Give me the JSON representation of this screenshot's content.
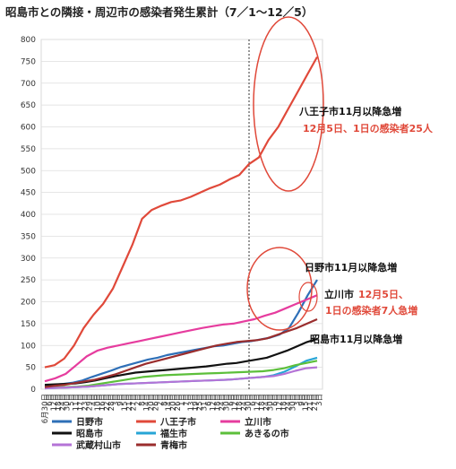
{
  "chart_data": {
    "type": "line",
    "title": "昭島市との隣接・周辺市の感染者発生累計（7／1～12／5）",
    "xlabel": "",
    "ylabel": "",
    "ylim": [
      0,
      800
    ],
    "yticks": [
      "0",
      "50",
      "100",
      "150",
      "200",
      "250",
      "300",
      "350",
      "400",
      "450",
      "500",
      "550",
      "600",
      "650",
      "700",
      "750",
      "800"
    ],
    "xticks": [
      "6月30日",
      "6日",
      "12日",
      "18日",
      "24日",
      "30日",
      "5日",
      "11日",
      "17日",
      "23日",
      "29日",
      "4日",
      "10日",
      "16日",
      "22日",
      "28日",
      "3日",
      "9日",
      "15日",
      "21日",
      "27日",
      "2日",
      "8日",
      "14日",
      "20日",
      "26日",
      "2日",
      "8日",
      "14日",
      "20日",
      "26日",
      "1日",
      "7日",
      "13日",
      "19日",
      "25日",
      "31日",
      "6日",
      "12日",
      "18日",
      "24日",
      "30日",
      "6日",
      "12日",
      "18日",
      "24日",
      "30日",
      "6日",
      "12日",
      "18日",
      "24日",
      "30日",
      "6日",
      "12日",
      "18日",
      "24日",
      "30日",
      "3日",
      "9日",
      "15日",
      "21日",
      "27日",
      "3日"
    ],
    "grid": true,
    "legend_position": "bottom",
    "series": [
      {
        "name": "日野市",
        "color": "#2e6fb7",
        "values": [
          8,
          10,
          12,
          15,
          20,
          28,
          35,
          42,
          50,
          56,
          62,
          68,
          72,
          78,
          82,
          86,
          90,
          94,
          98,
          100,
          104,
          108,
          110,
          114,
          118,
          125,
          140,
          175,
          215,
          250
        ]
      },
      {
        "name": "八王子市",
        "color": "#e0493a",
        "values": [
          50,
          55,
          70,
          100,
          140,
          170,
          195,
          230,
          280,
          330,
          390,
          410,
          420,
          428,
          432,
          440,
          450,
          460,
          468,
          480,
          490,
          515,
          530,
          570,
          600,
          640,
          680,
          720,
          760
        ]
      },
      {
        "name": "立川市",
        "color": "#e63c9e",
        "values": [
          18,
          25,
          35,
          55,
          75,
          88,
          95,
          100,
          105,
          110,
          115,
          120,
          125,
          130,
          135,
          140,
          144,
          148,
          150,
          155,
          160,
          168,
          175,
          185,
          195,
          205,
          215
        ]
      },
      {
        "name": "昭島市",
        "color": "#111111",
        "values": [
          10,
          11,
          12,
          13,
          16,
          20,
          25,
          30,
          34,
          38,
          40,
          42,
          44,
          46,
          48,
          50,
          52,
          55,
          58,
          60,
          64,
          68,
          72,
          80,
          88,
          98,
          108,
          115
        ]
      },
      {
        "name": "福生市",
        "color": "#27a5d6",
        "values": [
          2,
          3,
          4,
          5,
          6,
          8,
          10,
          12,
          13,
          14,
          15,
          16,
          17,
          18,
          19,
          20,
          21,
          22,
          24,
          26,
          28,
          32,
          40,
          52,
          65,
          72
        ]
      },
      {
        "name": "あきるの市",
        "color": "#5cbf3b",
        "values": [
          3,
          4,
          5,
          6,
          8,
          12,
          16,
          20,
          24,
          28,
          30,
          32,
          33,
          34,
          35,
          36,
          37,
          38,
          39,
          40,
          41,
          44,
          48,
          55,
          60,
          65
        ]
      },
      {
        "name": "武蔵村山市",
        "color": "#b473d6",
        "values": [
          2,
          3,
          4,
          5,
          6,
          8,
          10,
          12,
          13,
          14,
          15,
          16,
          17,
          18,
          19,
          20,
          21,
          22,
          24,
          26,
          28,
          30,
          35,
          42,
          48,
          50
        ]
      },
      {
        "name": "青梅市",
        "color": "#9a2d2d",
        "values": [
          5,
          8,
          10,
          14,
          18,
          22,
          28,
          34,
          42,
          50,
          58,
          64,
          70,
          76,
          82,
          88,
          94,
          100,
          104,
          108,
          110,
          112,
          116,
          124,
          132,
          140,
          150,
          160
        ]
      }
    ],
    "annotations": [
      {
        "text": "八王子市11月以降急増",
        "color": "black"
      },
      {
        "text": "12月5日、1日の感染者25人",
        "color": "red"
      },
      {
        "text": "日野市11月以降急増",
        "color": "black"
      },
      {
        "text": "立川市",
        "color": "black"
      },
      {
        "text": "12月5日、",
        "color": "red"
      },
      {
        "text": "1日の感染者7人急増",
        "color": "red"
      },
      {
        "text": "昭島市11月以降急増",
        "color": "black"
      }
    ]
  }
}
